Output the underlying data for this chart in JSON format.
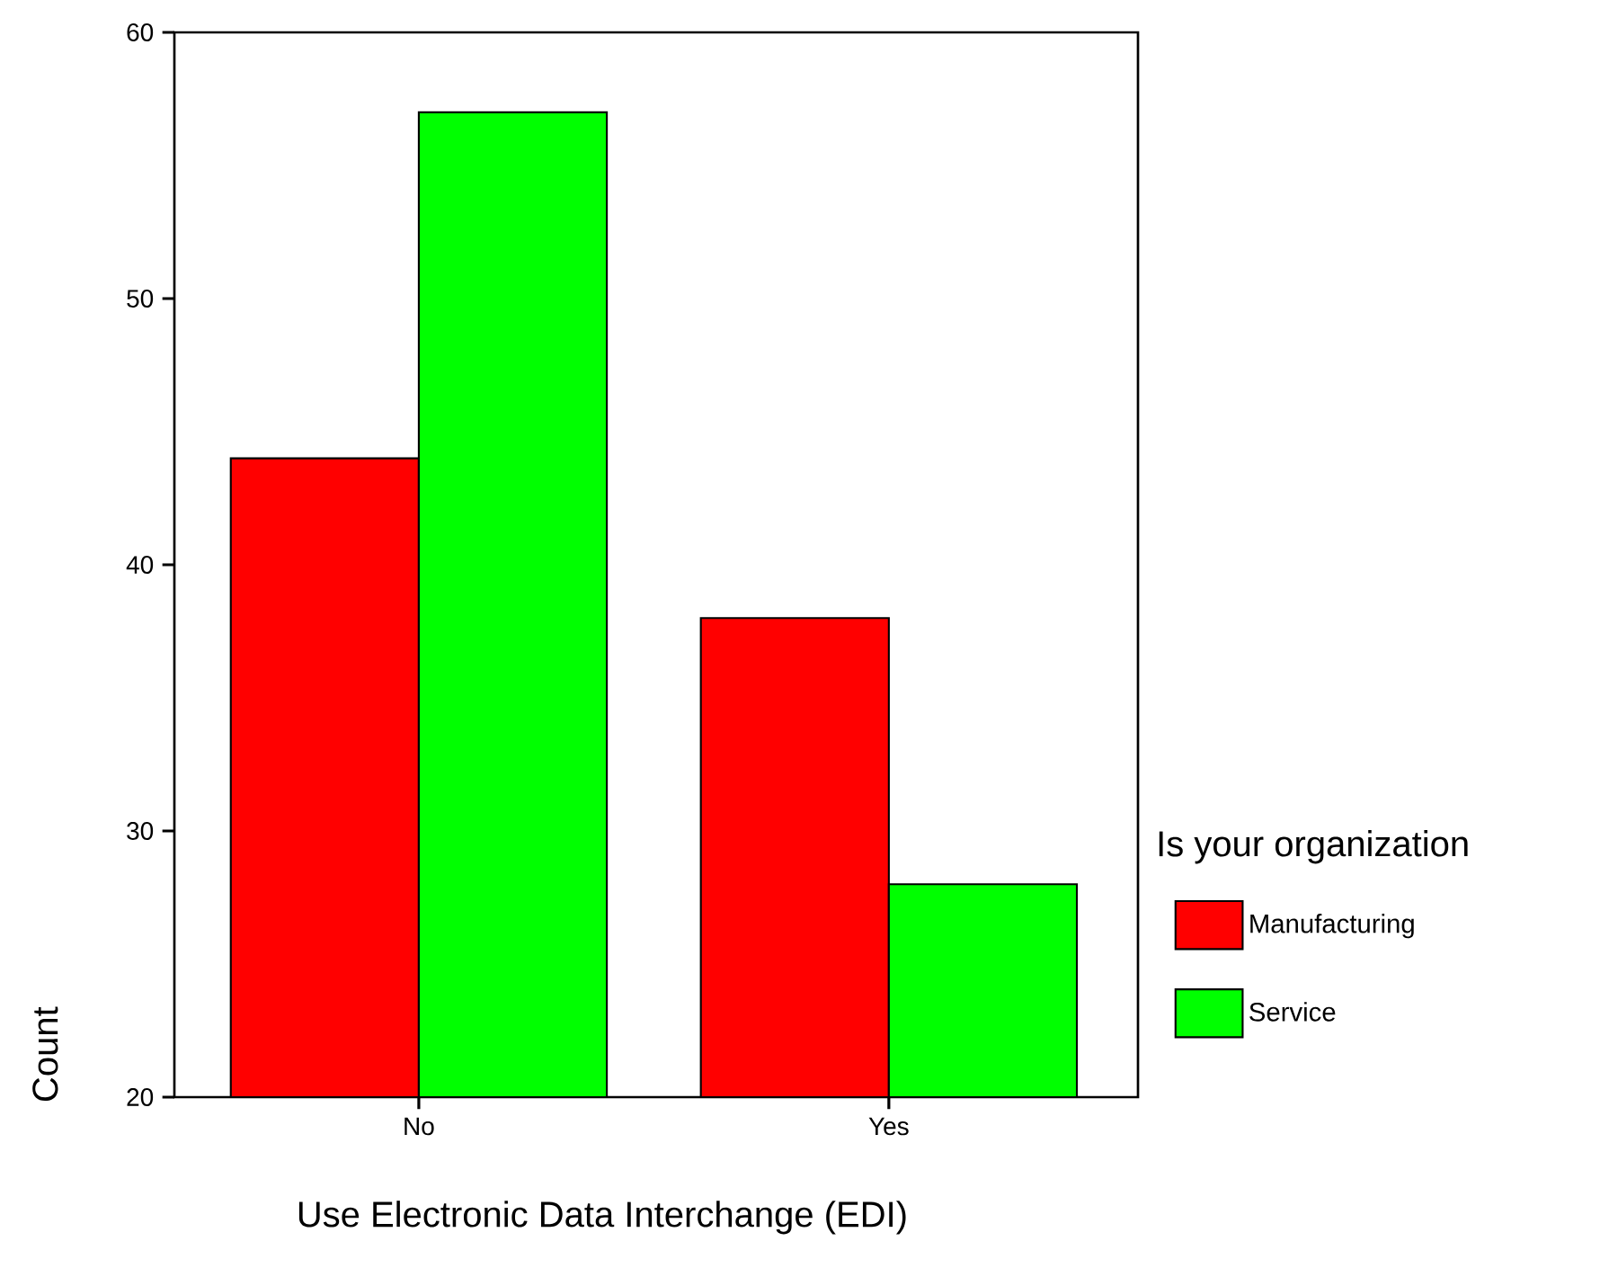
{
  "chart_data": {
    "type": "bar",
    "xlabel": "Use Electronic Data Interchange (EDI)",
    "ylabel": "Count",
    "legend_title": "Is your organization",
    "categories": [
      "No",
      "Yes"
    ],
    "series": [
      {
        "name": "Manufacturing",
        "color": "#ff0000",
        "values": [
          44,
          38
        ]
      },
      {
        "name": "Service",
        "color": "#00ff00",
        "values": [
          57,
          28
        ]
      }
    ],
    "ylim": [
      20,
      60
    ],
    "yticks": [
      20,
      30,
      40,
      50,
      60
    ],
    "grid": false,
    "legend": "right"
  }
}
